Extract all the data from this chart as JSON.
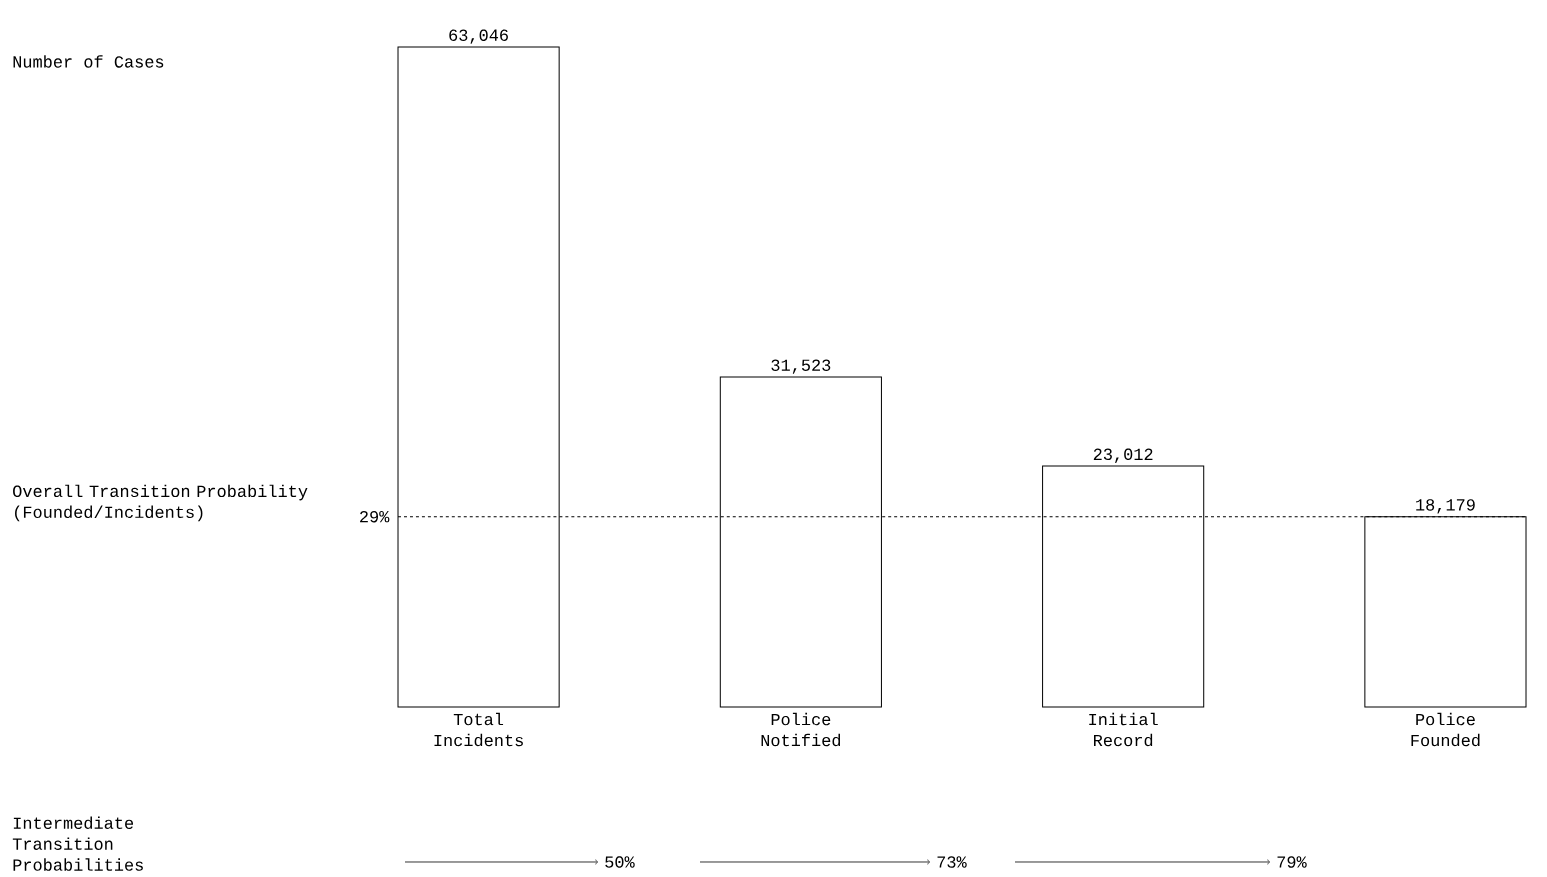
{
  "chart_data": {
    "type": "bar",
    "categories": [
      "Total Incidents",
      "Police Notified",
      "Initial Record",
      "Police Founded"
    ],
    "values": [
      63046,
      31523,
      23012,
      18179
    ],
    "value_labels": [
      "63,046",
      "31,523",
      "23,012",
      "18,179"
    ],
    "color": "#000000",
    "ref_lines": [
      {
        "axis": "y",
        "value": 18179,
        "line_style": "dashed"
      }
    ],
    "annotations": [
      "Overall Transition Probability (Founded/Incidents)",
      "Intermediate Transition Probabilities",
      "50%",
      "73%",
      "79%",
      "29%",
      "Number of Cases"
    ]
  }
}
